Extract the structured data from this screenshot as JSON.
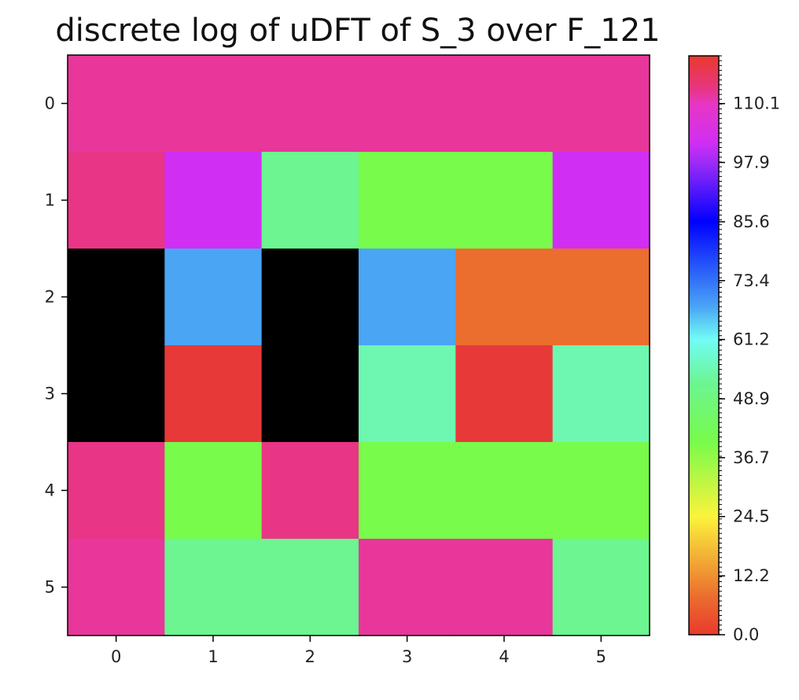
{
  "chart_data": {
    "type": "heatmap",
    "title": "discrete log of uDFT of S_3 over F_121",
    "xlabel": "",
    "ylabel": "",
    "x_ticks": [
      "0",
      "1",
      "2",
      "3",
      "4",
      "5"
    ],
    "y_ticks": [
      "0",
      "1",
      "2",
      "3",
      "4",
      "5"
    ],
    "colormap": "gist_rainbow_r",
    "vmin": 0,
    "vmax": 120,
    "undefined_value_color": "#000000",
    "values": [
      [
        112,
        112,
        112,
        112,
        112,
        112
      ],
      [
        113,
        102,
        52,
        40,
        40,
        102
      ],
      [
        null,
        68,
        null,
        68,
        8,
        8
      ],
      [
        null,
        119,
        null,
        55,
        119,
        55
      ],
      [
        113,
        40,
        113,
        40,
        40,
        40
      ],
      [
        112,
        52,
        52,
        112,
        112,
        52
      ]
    ],
    "colorbar": {
      "tick_labels": [
        "0.0",
        "12.2",
        "24.5",
        "36.7",
        "48.9",
        "61.2",
        "73.4",
        "85.6",
        "97.9",
        "110.1"
      ],
      "tick_values": [
        0.0,
        12.2,
        24.5,
        36.7,
        48.9,
        61.2,
        73.4,
        85.6,
        97.9,
        110.1
      ],
      "minor_tick_step": 1,
      "gradient_stops": [
        {
          "value": 0,
          "color": "#e83a2c"
        },
        {
          "value": 8,
          "color": "#eb6e2e"
        },
        {
          "value": 24.5,
          "color": "#fbf33c"
        },
        {
          "value": 40,
          "color": "#78fb4b"
        },
        {
          "value": 52,
          "color": "#6cf590"
        },
        {
          "value": 61.2,
          "color": "#71fcf5"
        },
        {
          "value": 68,
          "color": "#4aa5f5"
        },
        {
          "value": 85.6,
          "color": "#0000ff"
        },
        {
          "value": 97.9,
          "color": "#9d2cf7"
        },
        {
          "value": 102,
          "color": "#d12ef3"
        },
        {
          "value": 110.1,
          "color": "#e737c3"
        },
        {
          "value": 113,
          "color": "#e83585"
        },
        {
          "value": 120,
          "color": "#e83a2c"
        }
      ]
    }
  }
}
